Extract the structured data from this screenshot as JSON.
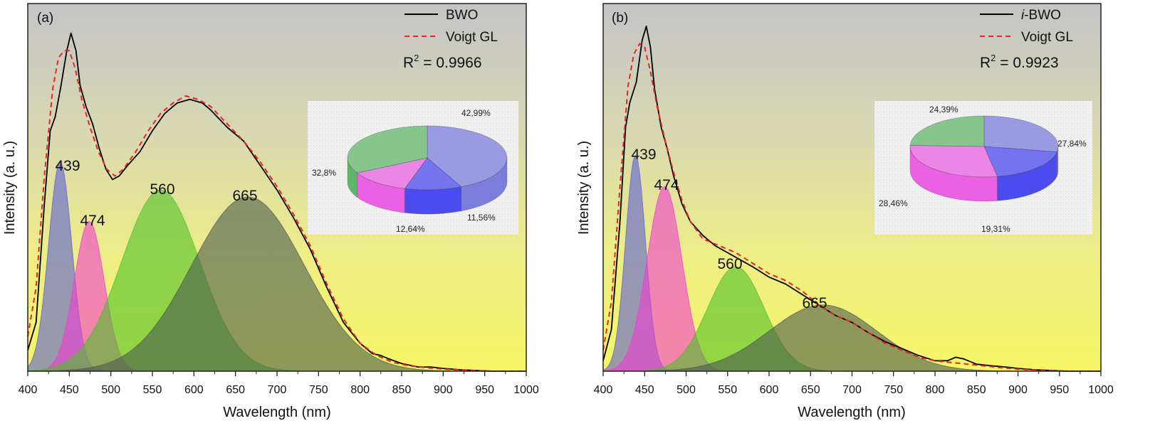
{
  "chart_data": [
    {
      "type": "line",
      "panel_label": "(a)",
      "xlabel": "Wavelength (nm)",
      "ylabel": "Intensity (a. u.)",
      "xlim": [
        400,
        1000
      ],
      "ylim": [
        0,
        1.0
      ],
      "xticks": [
        "400",
        "450",
        "500",
        "550",
        "600",
        "650",
        "700",
        "750",
        "800",
        "850",
        "900",
        "950",
        "1000"
      ],
      "legend": {
        "position": "top-right",
        "entries": [
          {
            "name": "BWO",
            "style": "solid",
            "color": "#000000"
          },
          {
            "name": "Voigt GL",
            "style": "dashed",
            "color": "#e8251e"
          }
        ]
      },
      "r2": {
        "prefix": "R",
        "sup": "2",
        "value": " = 0.9966"
      },
      "peaks": [
        {
          "label": "439",
          "center": 439,
          "amp": 0.6,
          "sigma": 14,
          "color": "#5b5bd6"
        },
        {
          "label": "474",
          "center": 474,
          "amp": 0.43,
          "sigma": 18,
          "color": "#f03cd2"
        },
        {
          "label": "560",
          "center": 560,
          "amp": 0.52,
          "sigma": 47,
          "color": "#4fbf28"
        },
        {
          "label": "665",
          "center": 665,
          "amp": 0.5,
          "sigma": 68,
          "color": "#4a5a4e"
        }
      ],
      "series": [
        {
          "name": "BWO",
          "points": [
            [
              400,
              0.06
            ],
            [
              410,
              0.14
            ],
            [
              420,
              0.48
            ],
            [
              427,
              0.69
            ],
            [
              433,
              0.73
            ],
            [
              440,
              0.82
            ],
            [
              447,
              0.92
            ],
            [
              452,
              0.97
            ],
            [
              458,
              0.92
            ],
            [
              463,
              0.82
            ],
            [
              470,
              0.76
            ],
            [
              478,
              0.71
            ],
            [
              486,
              0.64
            ],
            [
              494,
              0.58
            ],
            [
              502,
              0.55
            ],
            [
              510,
              0.56
            ],
            [
              520,
              0.59
            ],
            [
              535,
              0.63
            ],
            [
              550,
              0.69
            ],
            [
              565,
              0.74
            ],
            [
              580,
              0.77
            ],
            [
              595,
              0.78
            ],
            [
              610,
              0.77
            ],
            [
              620,
              0.75
            ],
            [
              640,
              0.7
            ],
            [
              660,
              0.66
            ],
            [
              680,
              0.59
            ],
            [
              700,
              0.52
            ],
            [
              720,
              0.44
            ],
            [
              740,
              0.35
            ],
            [
              760,
              0.24
            ],
            [
              780,
              0.14
            ],
            [
              800,
              0.08
            ],
            [
              815,
              0.05
            ],
            [
              825,
              0.045
            ],
            [
              835,
              0.035
            ],
            [
              850,
              0.022
            ],
            [
              870,
              0.012
            ],
            [
              885,
              0.012
            ],
            [
              900,
              0.008
            ],
            [
              920,
              0.004
            ],
            [
              940,
              0.002
            ],
            [
              960,
              0.0
            ],
            [
              980,
              0.0
            ],
            [
              1000,
              0.0
            ]
          ]
        },
        {
          "name": "Voigt GL",
          "points": [
            [
              400,
              0.1
            ],
            [
              410,
              0.24
            ],
            [
              420,
              0.56
            ],
            [
              430,
              0.81
            ],
            [
              437,
              0.9
            ],
            [
              444,
              0.92
            ],
            [
              450,
              0.92
            ],
            [
              457,
              0.87
            ],
            [
              465,
              0.78
            ],
            [
              475,
              0.7
            ],
            [
              485,
              0.63
            ],
            [
              495,
              0.58
            ],
            [
              505,
              0.56
            ],
            [
              515,
              0.58
            ],
            [
              530,
              0.63
            ],
            [
              545,
              0.69
            ],
            [
              560,
              0.74
            ],
            [
              575,
              0.77
            ],
            [
              590,
              0.79
            ],
            [
              605,
              0.78
            ],
            [
              620,
              0.76
            ],
            [
              640,
              0.71
            ],
            [
              660,
              0.66
            ],
            [
              680,
              0.6
            ],
            [
              700,
              0.53
            ],
            [
              720,
              0.45
            ],
            [
              740,
              0.36
            ],
            [
              760,
              0.25
            ],
            [
              780,
              0.15
            ],
            [
              800,
              0.08
            ],
            [
              820,
              0.045
            ],
            [
              840,
              0.025
            ],
            [
              860,
              0.015
            ],
            [
              880,
              0.01
            ],
            [
              900,
              0.006
            ],
            [
              930,
              0.002
            ],
            [
              960,
              0.0
            ],
            [
              1000,
              0.0
            ]
          ]
        }
      ],
      "pie": {
        "slices": [
          {
            "label": "42,99%",
            "value": 42.99,
            "color": "#5e60d8"
          },
          {
            "label": "11,56%",
            "value": 11.56,
            "color": "#2222ee"
          },
          {
            "label": "12,64%",
            "value": 12.64,
            "color": "#e83fe0"
          },
          {
            "label": "32,8%",
            "value": 32.8,
            "color": "#3fa84a"
          }
        ]
      }
    },
    {
      "type": "line",
      "panel_label": "(b)",
      "xlabel": "Wavelength (nm)",
      "ylabel": "Intensity (a. u.)",
      "xlim": [
        400,
        1000
      ],
      "ylim": [
        0,
        1.0
      ],
      "xticks": [
        "400",
        "450",
        "500",
        "550",
        "600",
        "650",
        "700",
        "750",
        "800",
        "850",
        "900",
        "950",
        "1000"
      ],
      "legend": {
        "position": "top-right",
        "entries": [
          {
            "name": "i-BWO",
            "italic_prefix": "i",
            "rest": "-BWO",
            "style": "solid",
            "color": "#000000"
          },
          {
            "name": "Voigt GL",
            "style": "dashed",
            "color": "#e8251e"
          }
        ]
      },
      "r2": {
        "prefix": "R",
        "sup": "2",
        "value": " = 0.9923"
      },
      "peaks": [
        {
          "label": "439",
          "center": 439,
          "amp": 0.62,
          "sigma": 12,
          "color": "#5b5bd6"
        },
        {
          "label": "474",
          "center": 474,
          "amp": 0.53,
          "sigma": 21,
          "color": "#f03cd2"
        },
        {
          "label": "560",
          "center": 560,
          "amp": 0.3,
          "sigma": 34,
          "color": "#4fbf28"
        },
        {
          "label": "665",
          "center": 665,
          "amp": 0.19,
          "sigma": 65,
          "color": "#4a5a4e"
        }
      ],
      "series": [
        {
          "name": "i-BWO",
          "points": [
            [
              400,
              0.03
            ],
            [
              410,
              0.12
            ],
            [
              420,
              0.42
            ],
            [
              427,
              0.7
            ],
            [
              432,
              0.77
            ],
            [
              440,
              0.83
            ],
            [
              447,
              0.95
            ],
            [
              452,
              0.99
            ],
            [
              457,
              0.93
            ],
            [
              462,
              0.81
            ],
            [
              470,
              0.7
            ],
            [
              477,
              0.64
            ],
            [
              485,
              0.56
            ],
            [
              495,
              0.48
            ],
            [
              505,
              0.43
            ],
            [
              520,
              0.39
            ],
            [
              535,
              0.36
            ],
            [
              550,
              0.34
            ],
            [
              565,
              0.32
            ],
            [
              580,
              0.3
            ],
            [
              600,
              0.27
            ],
            [
              620,
              0.25
            ],
            [
              640,
              0.22
            ],
            [
              660,
              0.19
            ],
            [
              680,
              0.16
            ],
            [
              700,
              0.14
            ],
            [
              720,
              0.11
            ],
            [
              740,
              0.085
            ],
            [
              760,
              0.065
            ],
            [
              780,
              0.045
            ],
            [
              800,
              0.03
            ],
            [
              815,
              0.03
            ],
            [
              825,
              0.04
            ],
            [
              835,
              0.035
            ],
            [
              850,
              0.02
            ],
            [
              870,
              0.015
            ],
            [
              885,
              0.012
            ],
            [
              900,
              0.008
            ],
            [
              920,
              0.004
            ],
            [
              940,
              0.002
            ],
            [
              960,
              0.0
            ],
            [
              1000,
              0.0
            ]
          ]
        },
        {
          "name": "Voigt GL",
          "points": [
            [
              400,
              0.06
            ],
            [
              410,
              0.2
            ],
            [
              420,
              0.52
            ],
            [
              430,
              0.82
            ],
            [
              437,
              0.91
            ],
            [
              444,
              0.94
            ],
            [
              450,
              0.93
            ],
            [
              457,
              0.86
            ],
            [
              465,
              0.76
            ],
            [
              475,
              0.66
            ],
            [
              485,
              0.57
            ],
            [
              495,
              0.49
            ],
            [
              505,
              0.43
            ],
            [
              520,
              0.38
            ],
            [
              540,
              0.36
            ],
            [
              560,
              0.34
            ],
            [
              580,
              0.31
            ],
            [
              600,
              0.28
            ],
            [
              620,
              0.26
            ],
            [
              640,
              0.23
            ],
            [
              660,
              0.19
            ],
            [
              680,
              0.16
            ],
            [
              700,
              0.14
            ],
            [
              720,
              0.11
            ],
            [
              740,
              0.08
            ],
            [
              760,
              0.06
            ],
            [
              780,
              0.04
            ],
            [
              800,
              0.03
            ],
            [
              820,
              0.025
            ],
            [
              840,
              0.02
            ],
            [
              860,
              0.015
            ],
            [
              880,
              0.01
            ],
            [
              900,
              0.006
            ],
            [
              930,
              0.002
            ],
            [
              960,
              0.0
            ],
            [
              1000,
              0.0
            ]
          ]
        }
      ],
      "pie": {
        "slices": [
          {
            "label": "27,84%",
            "value": 27.84,
            "color": "#5e60d8"
          },
          {
            "label": "19,31%",
            "value": 19.31,
            "color": "#2222ee"
          },
          {
            "label": "28,46%",
            "value": 28.46,
            "color": "#e83fe0"
          },
          {
            "label": "24,39%",
            "value": 24.39,
            "color": "#3fa84a"
          }
        ]
      }
    }
  ]
}
